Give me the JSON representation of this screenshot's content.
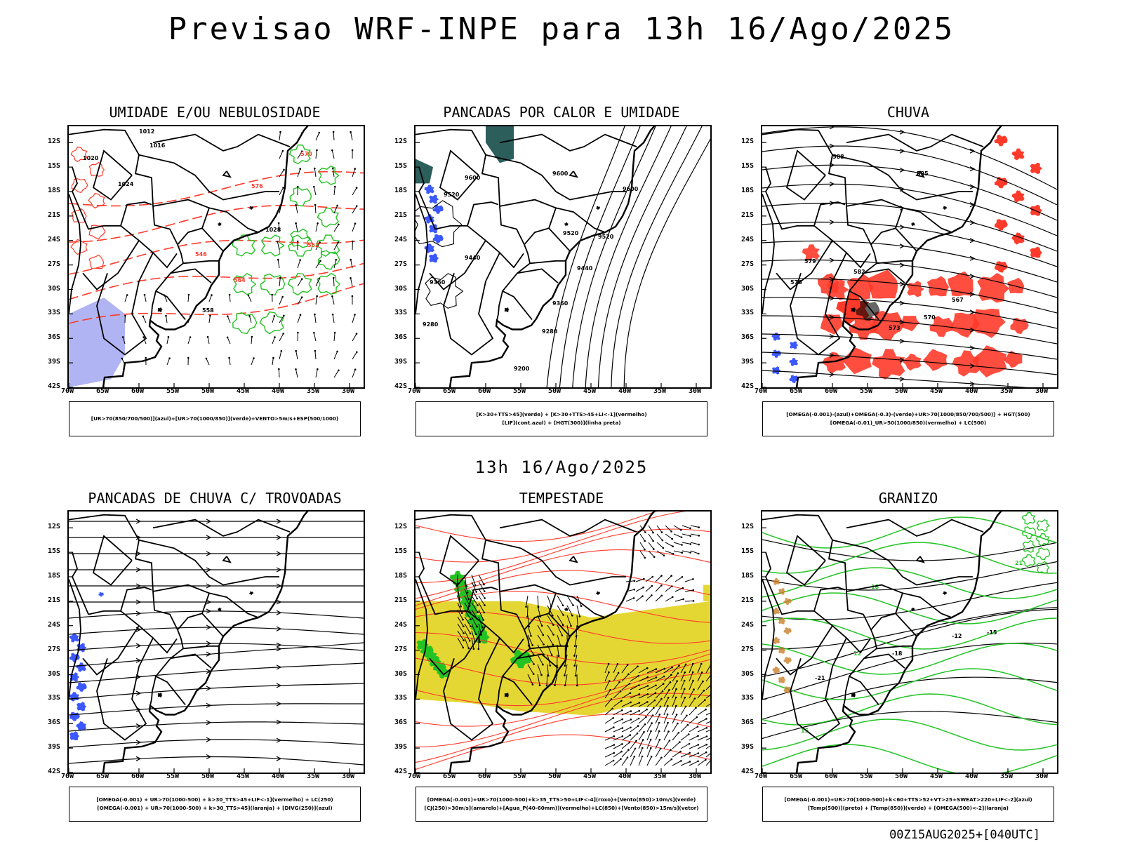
{
  "title": "Previsao WRF-INPE  para 13h 16/Ago/2025",
  "subtitle": "13h 16/Ago/2025",
  "footer": "00Z15AUG2025+[040UTC]",
  "lat_labels": [
    "12S",
    "15S",
    "18S",
    "21S",
    "24S",
    "27S",
    "30S",
    "33S",
    "36S",
    "39S",
    "42S"
  ],
  "lon_labels": [
    "70W",
    "65W",
    "60W",
    "55W",
    "50W",
    "45W",
    "40W",
    "35W",
    "30W"
  ],
  "colors": {
    "coast": "#000000",
    "green": "#22c322",
    "red": "#ff3a2a",
    "blue": "#3b57ff",
    "lavender": "#b0b4f2",
    "teal": "#2c5e5c",
    "yellow": "#e5d733"
  },
  "panels": [
    {
      "title": "UMIDADE E/OU NEBULOSIDADE",
      "legend": [
        "[UR>70(850/700/500)](azul)+[UR>70(1000/850)](verde)+VENTO>5m/s+ESP(500/1000)"
      ],
      "contour_labels": [
        "1012",
        "1016",
        "1020",
        "1024",
        "1028",
        "558",
        "564",
        "570",
        "576",
        "552",
        "546"
      ]
    },
    {
      "title": "PANCADAS POR CALOR E UMIDADE",
      "legend": [
        "[K>30+TTS>45](verde) + [K>30+TTS>45+LI<-1](vermelho)",
        "[LIF](cont.azul) + [HGT(300)](linha preta)"
      ],
      "contour_labels": [
        "9600",
        "9520",
        "9440",
        "9360",
        "9280",
        "9200"
      ]
    },
    {
      "title": "CHUVA",
      "legend": [
        "[OMEGA(-0.001)-(azul)+OMEGA(-0.3)-(verde)+UR>70(1000/850/700/500)] + HGT(500)",
        "[OMEGA(-0.01)_UR>50(1000/850)(vermelho) + LC(500)"
      ],
      "contour_labels": [
        "588",
        "585",
        "582",
        "579",
        "576",
        "573",
        "570",
        "567"
      ]
    },
    {
      "title": "PANCADAS DE CHUVA C/ TROVOADAS",
      "legend": [
        "[OMEGA(-0.001) + UR>70(1000-500) + k>30_TTS>45+LIF<-1](vermelho) + LC(250)",
        "[OMEGA(-0.001) + UR>70(1000-500) + k>30_TTS>45](laranja) + [DIVG(250)](azul)"
      ],
      "contour_labels": []
    },
    {
      "title": "TEMPESTADE",
      "legend": [
        "[OMEGA(-0.001)+UR>70(1000-500)+k>35_TTS>50+LIF<-4](roxo)+[Vento(850)>10m/s](verde)",
        "[CJ(250)>30m/s](amarelo)+[Agua_P(40-60mm)](vermelho)+LC(850)+[Vento(850)>15m/s](vetor)"
      ],
      "contour_labels": []
    },
    {
      "title": "GRANIZO",
      "legend": [
        "[OMEGA(-0.001)+UR>70(1000-500)+k<60+TTS>52+VT>25+SWEAT>220+LIF<-2](azul)",
        "[Temp(500)](preto) + [Temp(850)](verde) + [OMEGA(500)<-2](laranja)"
      ],
      "contour_labels": [
        "-12",
        "-15",
        "-18",
        "-21",
        "12",
        "15",
        "18",
        "21"
      ]
    }
  ]
}
